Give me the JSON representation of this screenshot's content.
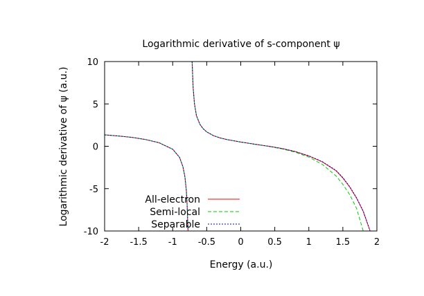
{
  "chart_data": {
    "type": "line",
    "title": "Logarithmic derivative of s-component ψ",
    "xlabel": "Energy (a.u.)",
    "ylabel": "Logarithmic derivative of ψ (a.u.)",
    "xlim": [
      -2,
      2
    ],
    "ylim": [
      -10,
      10
    ],
    "x_ticks": [
      -2,
      -1.5,
      -1,
      -0.5,
      0,
      0.5,
      1,
      1.5,
      2
    ],
    "x_tick_labels": [
      "-2",
      "-1.5",
      "-1",
      "-0.5",
      "0",
      "0.5",
      "1",
      "1.5",
      "2"
    ],
    "y_ticks": [
      -10,
      -5,
      0,
      5,
      10
    ],
    "y_tick_labels": [
      "-10",
      "-5",
      "0",
      "5",
      "10"
    ],
    "grid": false,
    "legend_position": "bottom-left",
    "series": [
      {
        "name": "All-electron",
        "color": "#ff0000",
        "dash": "solid",
        "segments": [
          [
            [
              -2.0,
              1.35
            ],
            [
              -1.8,
              1.22
            ],
            [
              -1.6,
              1.05
            ],
            [
              -1.4,
              0.8
            ],
            [
              -1.2,
              0.42
            ],
            [
              -1.0,
              -0.35
            ],
            [
              -0.9,
              -1.3
            ],
            [
              -0.85,
              -2.4
            ],
            [
              -0.82,
              -3.6
            ],
            [
              -0.8,
              -5.2
            ],
            [
              -0.79,
              -6.5
            ],
            [
              -0.775,
              -10.0
            ]
          ],
          [
            [
              -0.715,
              10.0
            ],
            [
              -0.7,
              7.0
            ],
            [
              -0.68,
              5.0
            ],
            [
              -0.65,
              3.6
            ],
            [
              -0.6,
              2.6
            ],
            [
              -0.55,
              2.05
            ],
            [
              -0.5,
              1.7
            ],
            [
              -0.4,
              1.25
            ],
            [
              -0.3,
              0.98
            ],
            [
              -0.2,
              0.78
            ],
            [
              0.0,
              0.5
            ],
            [
              0.2,
              0.25
            ],
            [
              0.4,
              0.02
            ],
            [
              0.6,
              -0.25
            ],
            [
              0.8,
              -0.62
            ],
            [
              1.0,
              -1.15
            ],
            [
              1.2,
              -1.85
            ],
            [
              1.4,
              -2.9
            ],
            [
              1.5,
              -3.75
            ],
            [
              1.6,
              -4.8
            ],
            [
              1.7,
              -6.1
            ],
            [
              1.8,
              -7.7
            ],
            [
              1.9,
              -10.0
            ]
          ]
        ]
      },
      {
        "name": "Semi-local",
        "color": "#00cc00",
        "dash": "dashed",
        "segments": [
          [
            [
              -2.0,
              1.35
            ],
            [
              -1.8,
              1.22
            ],
            [
              -1.6,
              1.05
            ],
            [
              -1.4,
              0.8
            ],
            [
              -1.2,
              0.42
            ],
            [
              -1.0,
              -0.35
            ],
            [
              -0.9,
              -1.3
            ],
            [
              -0.85,
              -2.4
            ],
            [
              -0.82,
              -3.6
            ],
            [
              -0.8,
              -5.2
            ],
            [
              -0.79,
              -6.5
            ],
            [
              -0.775,
              -10.0
            ]
          ],
          [
            [
              -0.715,
              10.0
            ],
            [
              -0.7,
              7.0
            ],
            [
              -0.68,
              5.0
            ],
            [
              -0.65,
              3.6
            ],
            [
              -0.6,
              2.6
            ],
            [
              -0.55,
              2.05
            ],
            [
              -0.5,
              1.7
            ],
            [
              -0.4,
              1.25
            ],
            [
              -0.3,
              0.98
            ],
            [
              -0.2,
              0.78
            ],
            [
              0.0,
              0.5
            ],
            [
              0.2,
              0.24
            ],
            [
              0.4,
              0.0
            ],
            [
              0.6,
              -0.3
            ],
            [
              0.8,
              -0.7
            ],
            [
              1.0,
              -1.28
            ],
            [
              1.2,
              -2.15
            ],
            [
              1.4,
              -3.5
            ],
            [
              1.5,
              -4.5
            ],
            [
              1.6,
              -5.7
            ],
            [
              1.7,
              -7.3
            ],
            [
              1.8,
              -10.0
            ]
          ]
        ]
      },
      {
        "name": "Separable",
        "color": "#0000cc",
        "dash": "dotted",
        "segments": [
          [
            [
              -2.0,
              1.35
            ],
            [
              -1.8,
              1.22
            ],
            [
              -1.6,
              1.05
            ],
            [
              -1.4,
              0.8
            ],
            [
              -1.2,
              0.42
            ],
            [
              -1.0,
              -0.35
            ],
            [
              -0.9,
              -1.3
            ],
            [
              -0.85,
              -2.4
            ],
            [
              -0.82,
              -3.6
            ],
            [
              -0.8,
              -5.2
            ],
            [
              -0.79,
              -6.5
            ],
            [
              -0.775,
              -10.0
            ]
          ],
          [
            [
              -0.715,
              10.0
            ],
            [
              -0.7,
              7.0
            ],
            [
              -0.68,
              5.0
            ],
            [
              -0.65,
              3.6
            ],
            [
              -0.6,
              2.6
            ],
            [
              -0.55,
              2.05
            ],
            [
              -0.5,
              1.7
            ],
            [
              -0.4,
              1.25
            ],
            [
              -0.3,
              0.98
            ],
            [
              -0.2,
              0.78
            ],
            [
              0.0,
              0.5
            ],
            [
              0.2,
              0.25
            ],
            [
              0.4,
              0.02
            ],
            [
              0.6,
              -0.25
            ],
            [
              0.8,
              -0.62
            ],
            [
              1.0,
              -1.13
            ],
            [
              1.2,
              -1.82
            ],
            [
              1.4,
              -2.85
            ],
            [
              1.5,
              -3.7
            ],
            [
              1.6,
              -4.75
            ],
            [
              1.7,
              -6.05
            ],
            [
              1.8,
              -7.65
            ],
            [
              1.9,
              -10.0
            ]
          ]
        ]
      }
    ]
  }
}
